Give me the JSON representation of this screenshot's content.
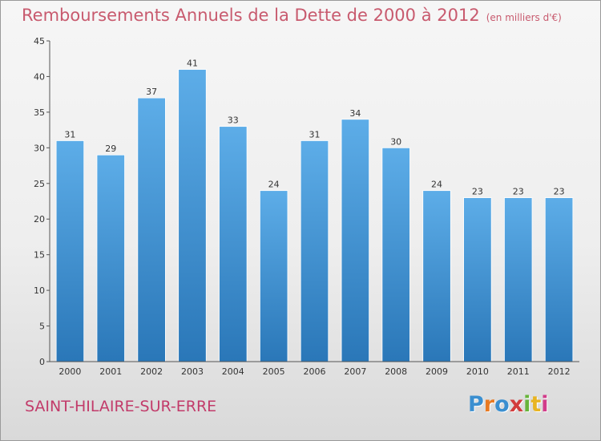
{
  "header": {
    "title": "Remboursements Annuels de la Dette de 2000 à 2012",
    "unit": "(en milliers d'€)"
  },
  "footer": {
    "commune": "SAINT-HILAIRE-SUR-ERRE",
    "logo": [
      "P",
      "r",
      "o",
      "x",
      "i",
      "t",
      "i"
    ]
  },
  "colors": {
    "bar_top": "#5dade8",
    "bar_bottom": "#2a77b8",
    "title": "#c85a6e",
    "commune": "#c23b6a"
  },
  "chart_data": {
    "type": "bar",
    "title": "Remboursements Annuels de la Dette de 2000 à 2012",
    "xlabel": "",
    "ylabel": "",
    "categories": [
      "2000",
      "2001",
      "2002",
      "2003",
      "2004",
      "2005",
      "2006",
      "2007",
      "2008",
      "2009",
      "2010",
      "2011",
      "2012"
    ],
    "values": [
      31,
      29,
      37,
      41,
      33,
      24,
      31,
      34,
      30,
      24,
      23,
      23,
      23
    ],
    "ylim": [
      0,
      45
    ],
    "yticks": [
      0,
      5,
      10,
      15,
      20,
      25,
      30,
      35,
      40,
      45
    ],
    "grid": false,
    "legend": "none"
  }
}
